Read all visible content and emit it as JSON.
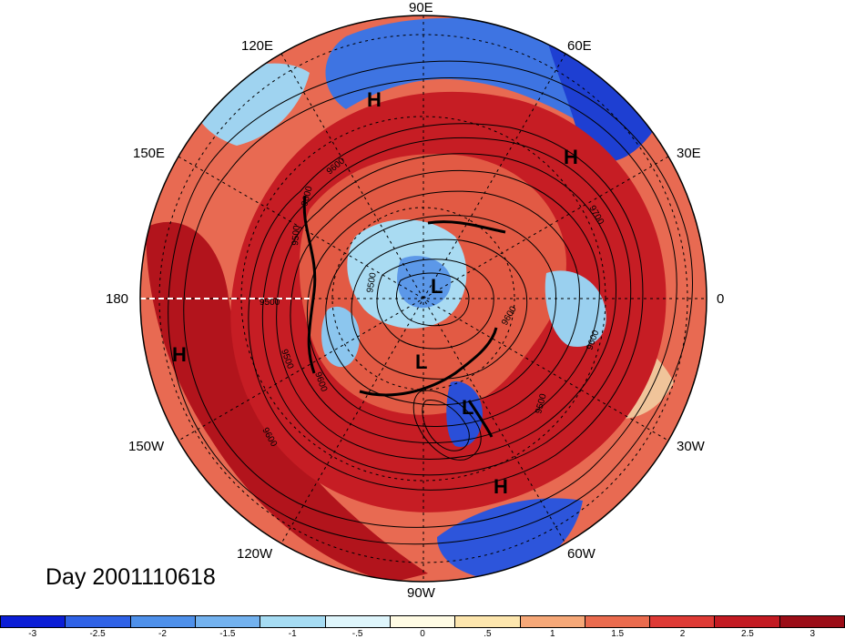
{
  "map": {
    "longitude_labels": [
      "90E",
      "120E",
      "60E",
      "150E",
      "30E",
      "180",
      "0",
      "150W",
      "30W",
      "120W",
      "60W",
      "90W"
    ],
    "pressure_centers": [
      "H",
      "H",
      "H",
      "H",
      "L",
      "L",
      "L"
    ],
    "contour_labels": [
      "9600",
      "9600",
      "9500",
      "9500",
      "9600",
      "9500",
      "9700",
      "9600",
      "9500",
      "9600",
      "9500",
      "9600"
    ]
  },
  "date_label": "Day 2001110618",
  "colorbar": {
    "colors": [
      "#0b1ed6",
      "#2f62e6",
      "#4e90ea",
      "#73b2ef",
      "#a6dcf3",
      "#def5fb",
      "#fffbe4",
      "#fde6ae",
      "#f6a878",
      "#ea6b4e",
      "#de3a35",
      "#c31a22",
      "#9b0d17"
    ],
    "tick_labels": [
      "-3",
      "-2.5",
      "-2",
      "-1.5",
      "-1",
      "-.5",
      "0",
      ".5",
      "1",
      "1.5",
      "2",
      "2.5",
      "3"
    ]
  }
}
